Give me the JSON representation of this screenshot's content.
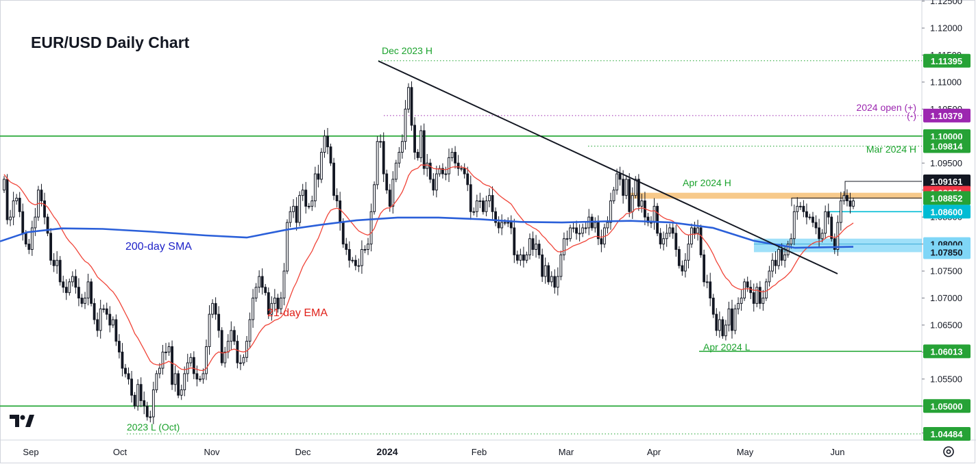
{
  "chart_data": {
    "type": "candlestick",
    "title": "EUR/USD Daily Chart",
    "y_axis": {
      "side": "right",
      "ticks": [
        "1.12500",
        "1.12000",
        "1.11500",
        "1.11000",
        "1.10500",
        "1.10000",
        "1.09500",
        "1.09000",
        "1.08500",
        "1.08000",
        "1.07500",
        "1.07000",
        "1.06500",
        "1.06000",
        "1.05500",
        "1.05000",
        "1.04500"
      ],
      "ylim": [
        1.0437,
        1.1252
      ]
    },
    "x_axis": {
      "ticks": [
        {
          "label": "Sep",
          "bold": false
        },
        {
          "label": "Oct",
          "bold": false
        },
        {
          "label": "Nov",
          "bold": false
        },
        {
          "label": "Dec",
          "bold": false
        },
        {
          "label": "2024",
          "bold": true
        },
        {
          "label": "Feb",
          "bold": false
        },
        {
          "label": "Mar",
          "bold": false
        },
        {
          "label": "Apr",
          "bold": false
        },
        {
          "label": "May",
          "bold": false
        },
        {
          "label": "Jun",
          "bold": false
        }
      ]
    },
    "closes": [
      1.092,
      1.0845,
      1.085,
      1.088,
      1.0885,
      1.086,
      1.082,
      1.08,
      1.079,
      1.083,
      1.085,
      1.09,
      1.088,
      1.085,
      1.082,
      1.077,
      1.076,
      1.077,
      1.073,
      1.072,
      1.071,
      1.073,
      1.074,
      1.072,
      1.07,
      1.069,
      1.07,
      1.073,
      1.069,
      1.066,
      1.064,
      1.068,
      1.068,
      1.067,
      1.065,
      1.066,
      1.062,
      1.06,
      1.057,
      1.056,
      1.055,
      1.052,
      1.05,
      1.054,
      1.051,
      1.05,
      1.048,
      1.048,
      1.053,
      1.056,
      1.057,
      1.06,
      1.06,
      1.061,
      1.054,
      1.056,
      1.052,
      1.053,
      1.056,
      1.058,
      1.059,
      1.056,
      1.055,
      1.055,
      1.056,
      1.061,
      1.067,
      1.069,
      1.067,
      1.064,
      1.058,
      1.06,
      1.062,
      1.064,
      1.062,
      1.058,
      1.058,
      1.059,
      1.062,
      1.066,
      1.07,
      1.072,
      1.074,
      1.072,
      1.071,
      1.067,
      1.069,
      1.07,
      1.068,
      1.07,
      1.075,
      1.084,
      1.086,
      1.087,
      1.084,
      1.089,
      1.09,
      1.087,
      1.087,
      1.088,
      1.093,
      1.092,
      1.097,
      1.1,
      1.098,
      1.095,
      1.089,
      1.088,
      1.084,
      1.08,
      1.079,
      1.077,
      1.077,
      1.076,
      1.076,
      1.079,
      1.079,
      1.08,
      1.086,
      1.091,
      1.099,
      1.099,
      1.093,
      1.09,
      1.087,
      1.092,
      1.095,
      1.097,
      1.099,
      1.105,
      1.109,
      1.102,
      1.097,
      1.096,
      1.101,
      1.094,
      1.095,
      1.092,
      1.09,
      1.093,
      1.094,
      1.093,
      1.093,
      1.096,
      1.097,
      1.095,
      1.094,
      1.094,
      1.093,
      1.091,
      1.086,
      1.086,
      1.088,
      1.088,
      1.086,
      1.088,
      1.089,
      1.086,
      1.084,
      1.083,
      1.084,
      1.084,
      1.084,
      1.083,
      1.078,
      1.077,
      1.078,
      1.077,
      1.078,
      1.081,
      1.079,
      1.08,
      1.078,
      1.074,
      1.076,
      1.073,
      1.074,
      1.072,
      1.074,
      1.078,
      1.081,
      1.081,
      1.083,
      1.083,
      1.082,
      1.082,
      1.083,
      1.083,
      1.085,
      1.083,
      1.084,
      1.081,
      1.08,
      1.083,
      1.084,
      1.088,
      1.09,
      1.093,
      1.092,
      1.089,
      1.092,
      1.086,
      1.089,
      1.092,
      1.087,
      1.088,
      1.085,
      1.084,
      1.084,
      1.087,
      1.082,
      1.08,
      1.081,
      1.082,
      1.083,
      1.082,
      1.079,
      1.076,
      1.075,
      1.077,
      1.08,
      1.083,
      1.082,
      1.083,
      1.078,
      1.073,
      1.073,
      1.07,
      1.067,
      1.064,
      1.066,
      1.063,
      1.065,
      1.068,
      1.064,
      1.068,
      1.069,
      1.07,
      1.073,
      1.072,
      1.071,
      1.069,
      1.072,
      1.069,
      1.07,
      1.073,
      1.075,
      1.077,
      1.076,
      1.079,
      1.077,
      1.078,
      1.08,
      1.081,
      1.086,
      1.087,
      1.087,
      1.086,
      1.085,
      1.085,
      1.084,
      1.083,
      1.081,
      1.082,
      1.086,
      1.085,
      1.081,
      1.079,
      1.084,
      1.088,
      1.089,
      1.088,
      1.087,
      1.088
    ],
    "ema21_label": "21-day EMA",
    "sma200_label": "200-day SMA",
    "trendline": {
      "from": [
        1.1139
      ],
      "to": [
        1.0745
      ]
    },
    "levels": [
      {
        "value": 1.11395,
        "label": "1.11395",
        "style": "dotted",
        "color": "#1aa22c",
        "tag_bg": "#26a236"
      },
      {
        "value": 1.10379,
        "label": "1.10379",
        "style": "dotted",
        "color": "#9c27b0",
        "tag_bg": "#9c27b0"
      },
      {
        "value": 1.1,
        "label": "1.10000",
        "style": "solid",
        "color": "#1aa22c",
        "tag_bg": "#26a236"
      },
      {
        "value": 1.09814,
        "label": "1.09814",
        "style": "dotted",
        "color": "#1aa22c",
        "tag_bg": "#26a236"
      },
      {
        "value": 1.09161,
        "label": "1.09161",
        "style": "none",
        "color": "#131722",
        "tag_bg": "#131722"
      },
      {
        "value": 1.08951,
        "label": "1.08951",
        "style": "none",
        "color": "#f23645",
        "tag_bg": "#f23645"
      },
      {
        "value": 1.08852,
        "label": "1.08852",
        "style": "none",
        "color": "#1aa22c",
        "tag_bg": "#26a236"
      },
      {
        "value": 1.086,
        "label": "1.08600",
        "style": "solid",
        "color": "#00bcd4",
        "tag_bg": "#00bcd4"
      },
      {
        "value": 1.08,
        "label": "1.08000",
        "style": "none",
        "color": "#5ac8fa",
        "tag_bg": "#7fd6f7"
      },
      {
        "value": 1.0785,
        "label": "1.07850",
        "style": "none",
        "color": "#5ac8fa",
        "tag_bg": "#7fd6f7"
      },
      {
        "value": 1.06013,
        "label": "1.06013",
        "style": "solid",
        "color": "#1aa22c",
        "tag_bg": "#26a236"
      },
      {
        "value": 1.05,
        "label": "1.05000",
        "style": "solid",
        "color": "#1aa22c",
        "tag_bg": "#26a236"
      },
      {
        "value": 1.04484,
        "label": "1.04484",
        "style": "dotted",
        "color": "#1aa22c",
        "tag_bg": "#26a236"
      }
    ],
    "annotations": [
      {
        "text": "Dec 2023 H",
        "color": "#1aa22c"
      },
      {
        "text": "2024 open (+)",
        "color": "#9c27b0"
      },
      {
        "text": "(-)",
        "color": "#9c27b0"
      },
      {
        "text": "Mar 2024 H",
        "color": "#1aa22c"
      },
      {
        "text": "Apr 2024 H",
        "color": "#1aa22c"
      },
      {
        "text": "Apr 2024 L",
        "color": "#1aa22c"
      },
      {
        "text": "2023 L (Oct)",
        "color": "#1aa22c"
      },
      {
        "text": "200-day SMA",
        "color": "#1e22c8"
      },
      {
        "text": "21-day EMA",
        "color": "#e0211a"
      }
    ],
    "colors": {
      "candle": "#131722",
      "ema": "#f04438",
      "sma": "#2a5fd9",
      "trendline": "#131722",
      "orange_zone": "#f7c98a",
      "blue_zone": "#7fd6f7"
    }
  },
  "watermark_logo": "TV",
  "icons": {
    "settings": "gear-icon"
  }
}
